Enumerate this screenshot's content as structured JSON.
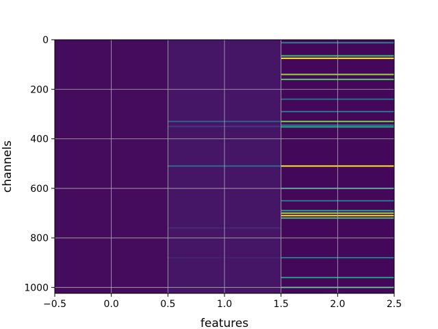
{
  "chart_data": {
    "type": "heatmap",
    "title": "",
    "xlabel": "features",
    "ylabel": "channels",
    "colormap": "viridis",
    "xlim": [
      -0.5,
      2.5
    ],
    "ylim": [
      1024,
      0
    ],
    "y_inverted": true,
    "grid": true,
    "grid_color": "#b0b0b0",
    "x_ticks": [
      -0.5,
      0.0,
      0.5,
      1.0,
      1.5,
      2.0,
      2.5
    ],
    "x_tick_labels": [
      "−0.5",
      "0.0",
      "0.5",
      "1.0",
      "1.5",
      "2.0",
      "2.5"
    ],
    "y_ticks": [
      0,
      200,
      400,
      600,
      800,
      1000
    ],
    "y_tick_labels": [
      "0",
      "200",
      "400",
      "600",
      "800",
      "1000"
    ],
    "columns": [
      {
        "feature": 0,
        "base_value": 0.03,
        "highlights": []
      },
      {
        "feature": 1,
        "base_value": 0.06,
        "highlights": [
          {
            "channel": 330,
            "value": 0.3
          },
          {
            "channel": 350,
            "value": 0.18
          },
          {
            "channel": 510,
            "value": 0.35
          },
          {
            "channel": 760,
            "value": 0.12
          },
          {
            "channel": 880,
            "value": 0.1
          }
        ]
      },
      {
        "feature": 2,
        "base_value": 0.02,
        "highlights": [
          {
            "channel": 12,
            "value": 0.45
          },
          {
            "channel": 65,
            "value": 0.7
          },
          {
            "channel": 75,
            "value": 1.0
          },
          {
            "channel": 140,
            "value": 0.85
          },
          {
            "channel": 160,
            "value": 0.75
          },
          {
            "channel": 240,
            "value": 0.35
          },
          {
            "channel": 290,
            "value": 0.4
          },
          {
            "channel": 330,
            "value": 0.8
          },
          {
            "channel": 345,
            "value": 0.45
          },
          {
            "channel": 352,
            "value": 0.6
          },
          {
            "channel": 510,
            "value": 1.0
          },
          {
            "channel": 600,
            "value": 0.55
          },
          {
            "channel": 650,
            "value": 0.4
          },
          {
            "channel": 690,
            "value": 0.6
          },
          {
            "channel": 700,
            "value": 0.85
          },
          {
            "channel": 710,
            "value": 1.0
          },
          {
            "channel": 720,
            "value": 0.7
          },
          {
            "channel": 880,
            "value": 0.4
          },
          {
            "channel": 960,
            "value": 0.55
          },
          {
            "channel": 1000,
            "value": 0.65
          }
        ]
      }
    ]
  }
}
